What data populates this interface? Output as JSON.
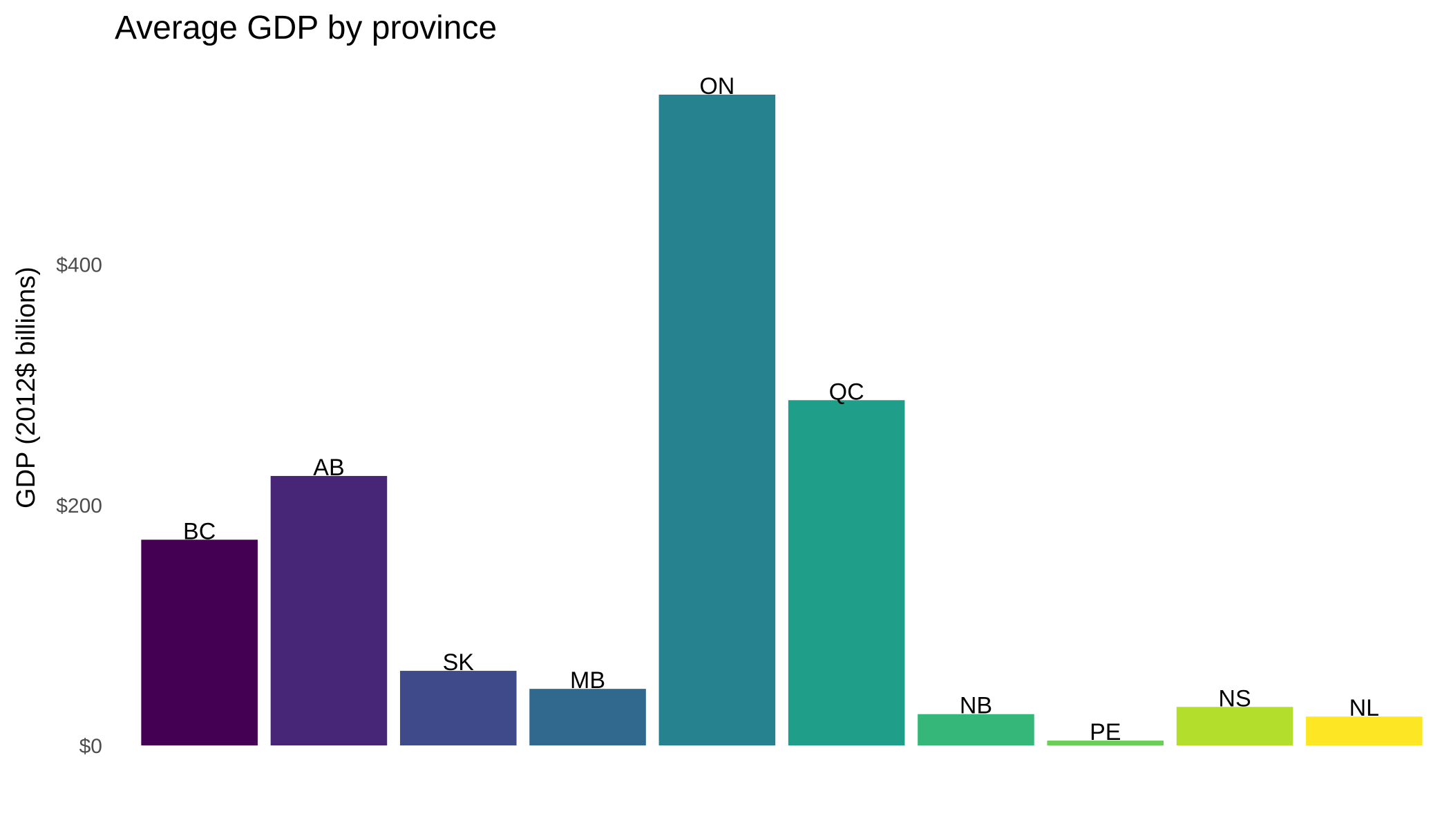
{
  "chart_data": {
    "type": "bar",
    "title": "Average GDP by province",
    "xlabel": "",
    "ylabel": "GDP (2012$ billions)",
    "categories": [
      "BC",
      "AB",
      "SK",
      "MB",
      "ON",
      "QC",
      "NB",
      "PE",
      "NS",
      "NL"
    ],
    "values": [
      171,
      224,
      62,
      47,
      541,
      287,
      26,
      4,
      32,
      24
    ],
    "ylim": [
      0,
      541
    ],
    "yticks": [
      0,
      200,
      400
    ],
    "ytick_labels": [
      "$0",
      "$200",
      "$400"
    ],
    "colors": [
      "#440154",
      "#482677",
      "#3e4a89",
      "#31688e",
      "#26828e",
      "#1f9e89",
      "#35b779",
      "#6dcd59",
      "#b4de2c",
      "#fde725"
    ],
    "grid": false,
    "legend": "none",
    "bar_labels": "category name above each bar"
  }
}
